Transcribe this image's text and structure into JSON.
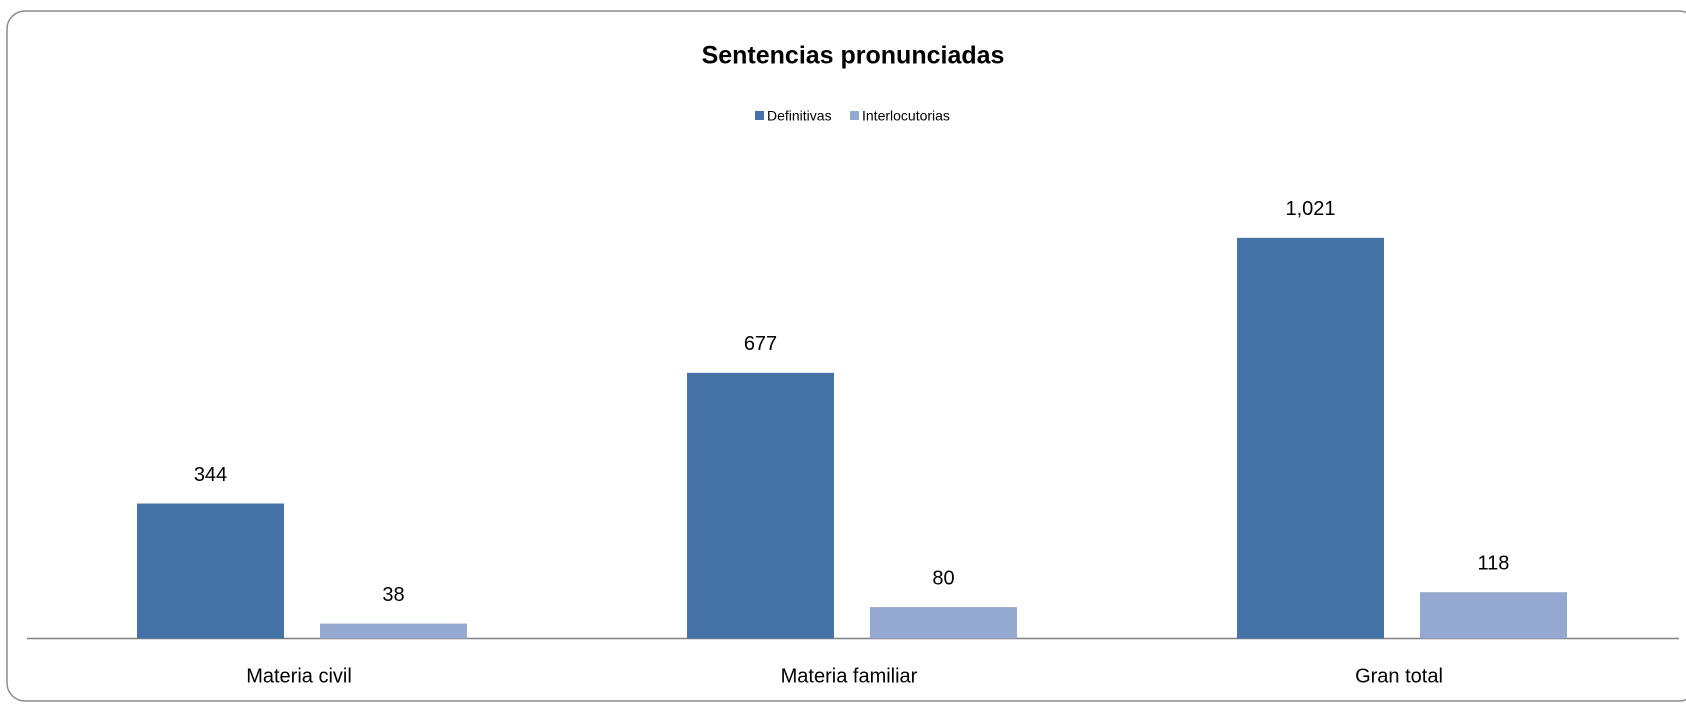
{
  "chart_data": {
    "type": "bar",
    "title": "Sentencias pronunciadas",
    "categories": [
      "Materia civil",
      "Materia familiar",
      "Gran total"
    ],
    "series": [
      {
        "name": "Definitivas",
        "color": "#4673a7",
        "values": [
          344,
          677,
          1021
        ],
        "value_labels": [
          "344",
          "677",
          "1,021"
        ]
      },
      {
        "name": "Interlocutorias",
        "color": "#95a9d0",
        "values": [
          38,
          80,
          118
        ],
        "value_labels": [
          "38",
          "80",
          "118"
        ]
      }
    ],
    "ylim": [
      0,
      1200
    ],
    "legend": "top"
  }
}
